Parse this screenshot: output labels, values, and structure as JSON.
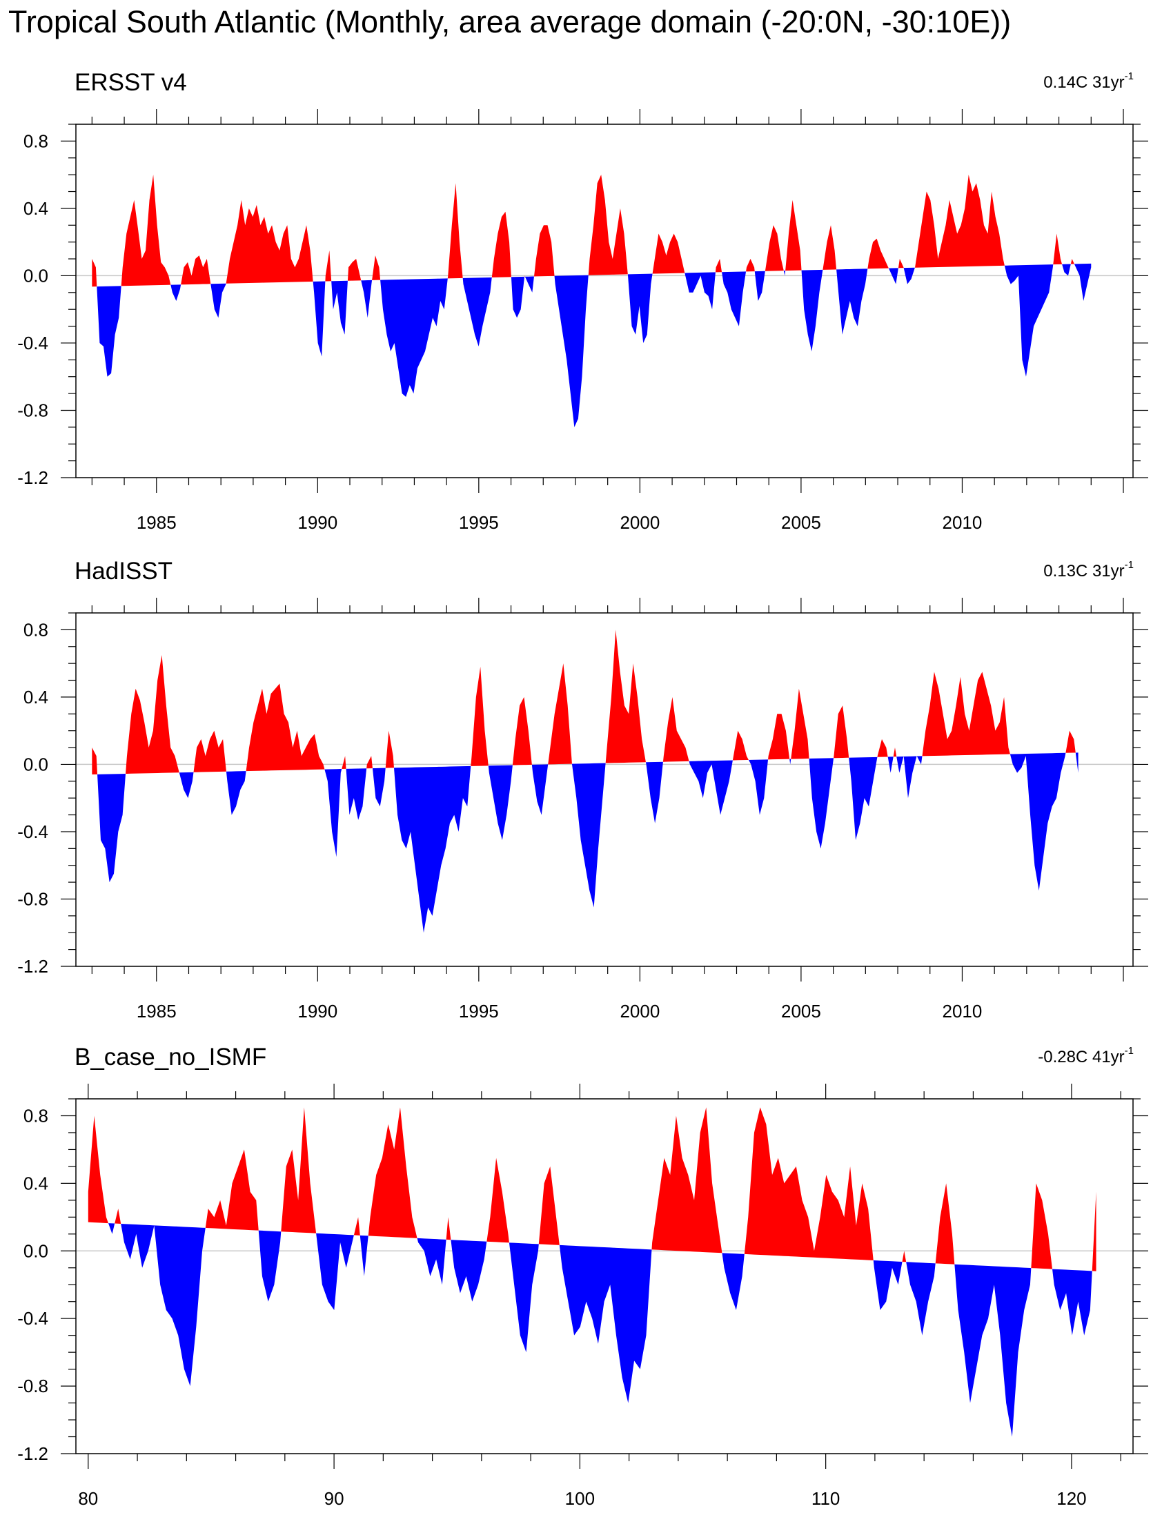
{
  "title": "Tropical South Atlantic (Monthly, area average domain (-20:0N, -30:10E))",
  "colors": {
    "positive": "#ff0000",
    "negative": "#0000ff",
    "axis": "#000000",
    "zero_line": "#c8c8c8"
  },
  "chart_data": [
    {
      "type": "area",
      "panel_title": "ERSST v4",
      "trend": {
        "value": "0.14C 31yr",
        "exponent": "-1"
      },
      "xlabel": "",
      "ylabel": "",
      "xlim": [
        1982.5,
        2015.3
      ],
      "ylim": [
        -1.2,
        0.9
      ],
      "xtick_values": [
        1985,
        1990,
        1995,
        2000,
        2005,
        2010
      ],
      "xtick_labels": [
        "1985",
        "1990",
        "1995",
        "2000",
        "2005",
        "2010"
      ],
      "ytick_values": [
        0.8,
        0.4,
        0.0,
        -0.4,
        -0.8,
        -1.2
      ],
      "ytick_labels": [
        "0.8",
        "0.4",
        "0.0",
        "-0.4",
        "-0.8",
        "-1.2"
      ],
      "series_x_start": 1983.0,
      "series_x_end": 2014.0,
      "trend_line": [
        -0.065,
        0.072
      ],
      "anomaly_series": [
        0.1,
        0.05,
        -0.4,
        -0.42,
        -0.6,
        -0.58,
        -0.35,
        -0.25,
        0.05,
        0.25,
        0.35,
        0.45,
        0.28,
        0.1,
        0.15,
        0.45,
        0.6,
        0.3,
        0.08,
        0.05,
        0.0,
        -0.1,
        -0.15,
        -0.08,
        0.05,
        0.08,
        0.0,
        0.1,
        0.12,
        0.05,
        0.1,
        -0.05,
        -0.2,
        -0.25,
        -0.1,
        -0.05,
        0.1,
        0.2,
        0.3,
        0.45,
        0.3,
        0.4,
        0.35,
        0.42,
        0.3,
        0.35,
        0.25,
        0.3,
        0.2,
        0.15,
        0.25,
        0.3,
        0.1,
        0.05,
        0.1,
        0.2,
        0.3,
        0.15,
        -0.1,
        -0.4,
        -0.48,
        0.0,
        0.15,
        -0.2,
        -0.1,
        -0.28,
        -0.35,
        0.05,
        0.08,
        0.1,
        0.0,
        -0.1,
        -0.25,
        -0.05,
        0.12,
        0.05,
        -0.2,
        -0.35,
        -0.45,
        -0.4,
        -0.55,
        -0.7,
        -0.72,
        -0.65,
        -0.7,
        -0.55,
        -0.5,
        -0.45,
        -0.35,
        -0.25,
        -0.3,
        -0.15,
        -0.2,
        0.0,
        0.3,
        0.55,
        0.2,
        -0.05,
        -0.15,
        -0.25,
        -0.35,
        -0.42,
        -0.3,
        -0.2,
        -0.1,
        0.1,
        0.25,
        0.35,
        0.38,
        0.2,
        -0.2,
        -0.25,
        -0.2,
        0.0,
        -0.05,
        -0.1,
        0.1,
        0.25,
        0.3,
        0.3,
        0.2,
        -0.05,
        -0.2,
        -0.35,
        -0.5,
        -0.7,
        -0.9,
        -0.85,
        -0.6,
        -0.2,
        0.1,
        0.3,
        0.55,
        0.6,
        0.45,
        0.2,
        0.1,
        0.25,
        0.4,
        0.25,
        0.0,
        -0.3,
        -0.35,
        -0.18,
        -0.4,
        -0.35,
        -0.05,
        0.1,
        0.25,
        0.2,
        0.12,
        0.2,
        0.25,
        0.2,
        0.1,
        0.0,
        -0.1,
        -0.1,
        -0.05,
        0.0,
        -0.1,
        -0.12,
        -0.2,
        0.05,
        0.1,
        -0.05,
        -0.1,
        -0.2,
        -0.25,
        -0.3,
        -0.1,
        0.05,
        0.1,
        0.05,
        -0.15,
        -0.1,
        0.05,
        0.2,
        0.3,
        0.25,
        0.1,
        0.0,
        0.25,
        0.45,
        0.3,
        0.15,
        -0.2,
        -0.35,
        -0.45,
        -0.3,
        -0.1,
        0.05,
        0.2,
        0.3,
        0.15,
        -0.1,
        -0.35,
        -0.25,
        -0.15,
        -0.25,
        -0.3,
        -0.15,
        -0.05,
        0.1,
        0.2,
        0.22,
        0.15,
        0.1,
        0.05,
        0.0,
        -0.05,
        0.1,
        0.05,
        -0.05,
        -0.02,
        0.05,
        0.2,
        0.35,
        0.5,
        0.45,
        0.3,
        0.1,
        0.2,
        0.3,
        0.45,
        0.35,
        0.25,
        0.3,
        0.4,
        0.6,
        0.5,
        0.55,
        0.45,
        0.3,
        0.25,
        0.5,
        0.35,
        0.25,
        0.1,
        0.0,
        -0.05,
        -0.03,
        0.0,
        -0.5,
        -0.6,
        -0.45,
        -0.3,
        -0.25,
        -0.2,
        -0.15,
        -0.1,
        0.05,
        0.25,
        0.1,
        0.02,
        0.0,
        0.1,
        0.05,
        0.0,
        -0.15,
        -0.05,
        0.05
      ]
    },
    {
      "type": "area",
      "panel_title": "HadISST",
      "trend": {
        "value": "0.13C 31yr",
        "exponent": "-1"
      },
      "xlabel": "",
      "ylabel": "",
      "xlim": [
        1982.5,
        2015.3
      ],
      "ylim": [
        -1.2,
        0.9
      ],
      "xtick_values": [
        1985,
        1990,
        1995,
        2000,
        2005,
        2010
      ],
      "xtick_labels": [
        "1985",
        "1990",
        "1995",
        "2000",
        "2005",
        "2010"
      ],
      "ytick_values": [
        0.8,
        0.4,
        0.0,
        -0.4,
        -0.8,
        -1.2
      ],
      "ytick_labels": [
        "0.8",
        "0.4",
        "0.0",
        "-0.4",
        "-0.8",
        "-1.2"
      ],
      "series_x_start": 1983.0,
      "series_x_end": 2013.6,
      "trend_line": [
        -0.06,
        0.07
      ],
      "anomaly_series": [
        0.1,
        0.05,
        -0.45,
        -0.5,
        -0.7,
        -0.65,
        -0.4,
        -0.3,
        0.05,
        0.3,
        0.45,
        0.38,
        0.25,
        0.1,
        0.2,
        0.5,
        0.65,
        0.35,
        0.1,
        0.05,
        -0.05,
        -0.15,
        -0.2,
        -0.1,
        0.1,
        0.15,
        0.05,
        0.15,
        0.2,
        0.1,
        0.15,
        -0.1,
        -0.3,
        -0.25,
        -0.15,
        -0.1,
        0.1,
        0.25,
        0.35,
        0.45,
        0.3,
        0.42,
        0.45,
        0.48,
        0.3,
        0.25,
        0.1,
        0.2,
        0.05,
        0.1,
        0.15,
        0.18,
        0.05,
        0.0,
        -0.1,
        -0.4,
        -0.55,
        -0.05,
        0.05,
        -0.3,
        -0.2,
        -0.33,
        -0.25,
        0.0,
        0.05,
        -0.2,
        -0.25,
        -0.1,
        0.2,
        0.05,
        -0.3,
        -0.45,
        -0.5,
        -0.4,
        -0.6,
        -0.8,
        -1.0,
        -0.85,
        -0.9,
        -0.75,
        -0.6,
        -0.5,
        -0.35,
        -0.3,
        -0.4,
        -0.2,
        -0.25,
        0.05,
        0.4,
        0.58,
        0.2,
        -0.05,
        -0.2,
        -0.35,
        -0.45,
        -0.3,
        -0.1,
        0.15,
        0.35,
        0.4,
        0.2,
        -0.05,
        -0.22,
        -0.3,
        -0.1,
        0.1,
        0.3,
        0.45,
        0.6,
        0.35,
        0.0,
        -0.2,
        -0.45,
        -0.6,
        -0.75,
        -0.85,
        -0.5,
        -0.2,
        0.1,
        0.4,
        0.8,
        0.55,
        0.35,
        0.3,
        0.6,
        0.4,
        0.15,
        0.0,
        -0.2,
        -0.35,
        -0.2,
        0.05,
        0.25,
        0.4,
        0.2,
        0.15,
        0.1,
        0.0,
        -0.05,
        -0.1,
        -0.2,
        -0.05,
        0.0,
        -0.15,
        -0.3,
        -0.2,
        -0.1,
        0.05,
        0.2,
        0.15,
        0.05,
        0.0,
        -0.1,
        -0.3,
        -0.2,
        0.05,
        0.15,
        0.3,
        0.3,
        0.2,
        0.0,
        0.2,
        0.45,
        0.3,
        0.15,
        -0.2,
        -0.4,
        -0.5,
        -0.35,
        -0.15,
        0.05,
        0.3,
        0.35,
        0.15,
        -0.1,
        -0.45,
        -0.35,
        -0.2,
        -0.25,
        -0.1,
        0.05,
        0.15,
        0.1,
        -0.05,
        0.1,
        -0.05,
        0.05,
        -0.2,
        -0.05,
        0.05,
        0.0,
        0.2,
        0.35,
        0.55,
        0.45,
        0.3,
        0.15,
        0.2,
        0.35,
        0.52,
        0.3,
        0.2,
        0.35,
        0.5,
        0.55,
        0.45,
        0.35,
        0.2,
        0.25,
        0.4,
        0.1,
        0.0,
        -0.05,
        -0.02,
        0.05,
        -0.3,
        -0.6,
        -0.75,
        -0.55,
        -0.35,
        -0.25,
        -0.2,
        -0.05,
        0.05,
        0.2,
        0.15,
        -0.05
      ]
    },
    {
      "type": "area",
      "panel_title": "B_case_no_ISMF",
      "trend": {
        "value": "-0.28C 41yr",
        "exponent": "-1"
      },
      "xlabel": "",
      "ylabel": "",
      "xlim": [
        79.5,
        122.5
      ],
      "ylim": [
        -1.2,
        0.9
      ],
      "xtick_values": [
        80,
        90,
        100,
        110,
        120
      ],
      "xtick_labels": [
        "80",
        "90",
        "100",
        "110",
        "120"
      ],
      "ytick_values": [
        0.8,
        0.4,
        0.0,
        -0.4,
        -0.8,
        -1.2
      ],
      "ytick_labels": [
        "0.8",
        "0.4",
        "0.0",
        "-0.4",
        "-0.8",
        "-1.2"
      ],
      "series_x_start": 80.0,
      "series_x_end": 121.0,
      "trend_line": [
        0.17,
        -0.12
      ],
      "anomaly_series": [
        0.35,
        0.8,
        0.45,
        0.2,
        0.1,
        0.25,
        0.05,
        -0.05,
        0.1,
        -0.1,
        0.0,
        0.15,
        -0.2,
        -0.35,
        -0.4,
        -0.5,
        -0.7,
        -0.8,
        -0.45,
        0.0,
        0.25,
        0.2,
        0.3,
        0.15,
        0.4,
        0.5,
        0.6,
        0.35,
        0.3,
        -0.15,
        -0.3,
        -0.2,
        0.05,
        0.5,
        0.6,
        0.3,
        0.85,
        0.4,
        0.1,
        -0.2,
        -0.3,
        -0.35,
        0.05,
        -0.1,
        0.05,
        0.2,
        -0.15,
        0.2,
        0.45,
        0.55,
        0.75,
        0.6,
        0.85,
        0.5,
        0.2,
        0.05,
        0.0,
        -0.15,
        -0.05,
        -0.2,
        0.2,
        -0.1,
        -0.25,
        -0.15,
        -0.3,
        -0.2,
        -0.05,
        0.2,
        0.55,
        0.35,
        0.1,
        -0.2,
        -0.5,
        -0.6,
        -0.2,
        0.0,
        0.4,
        0.5,
        0.2,
        -0.1,
        -0.3,
        -0.5,
        -0.45,
        -0.3,
        -0.4,
        -0.55,
        -0.3,
        -0.2,
        -0.5,
        -0.75,
        -0.9,
        -0.65,
        -0.7,
        -0.5,
        0.05,
        0.3,
        0.55,
        0.45,
        0.8,
        0.55,
        0.45,
        0.3,
        0.7,
        0.85,
        0.4,
        0.15,
        -0.1,
        -0.25,
        -0.35,
        -0.15,
        0.2,
        0.7,
        0.85,
        0.75,
        0.45,
        0.55,
        0.4,
        0.45,
        0.5,
        0.3,
        0.2,
        0.0,
        0.2,
        0.45,
        0.35,
        0.3,
        0.2,
        0.5,
        0.15,
        0.4,
        0.25,
        -0.1,
        -0.35,
        -0.3,
        -0.1,
        -0.2,
        0.0,
        -0.2,
        -0.3,
        -0.5,
        -0.3,
        -0.15,
        0.2,
        0.4,
        0.1,
        -0.35,
        -0.6,
        -0.9,
        -0.7,
        -0.5,
        -0.4,
        -0.2,
        -0.5,
        -0.9,
        -1.1,
        -0.6,
        -0.35,
        -0.2,
        0.4,
        0.3,
        0.1,
        -0.2,
        -0.35,
        -0.25,
        -0.5,
        -0.3,
        -0.5,
        -0.35,
        0.35
      ]
    }
  ]
}
